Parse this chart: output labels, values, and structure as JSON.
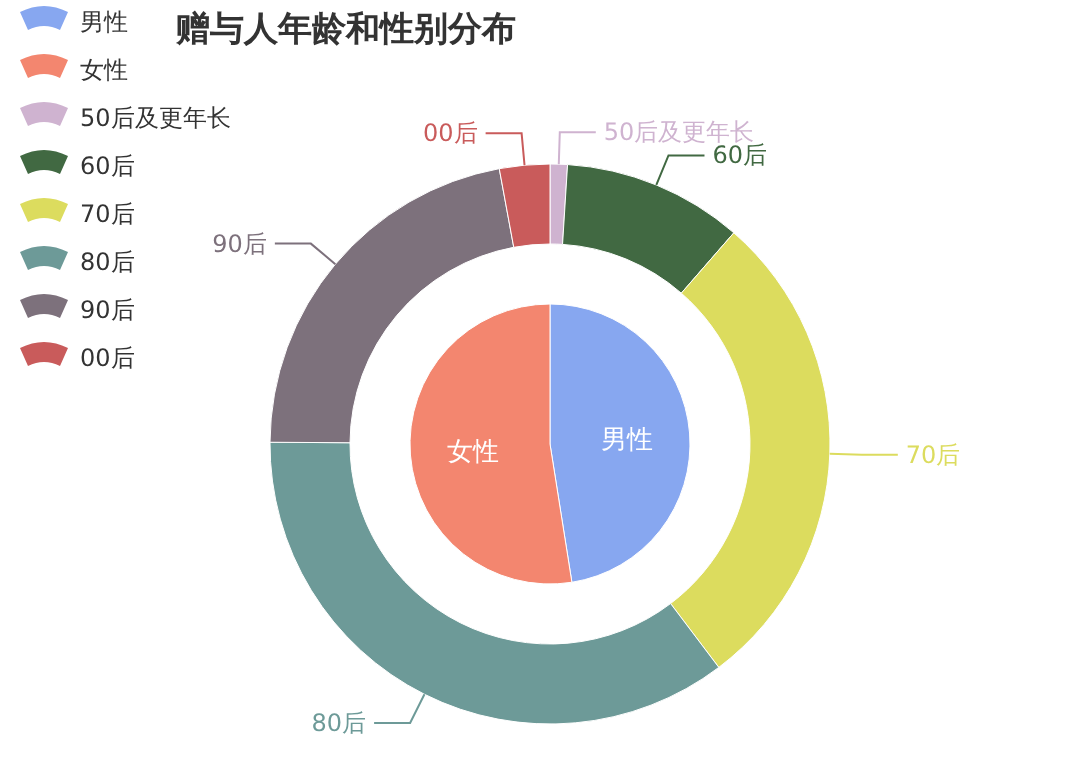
{
  "chart_data": [
    {
      "type": "pie",
      "title": "赠与人年龄和性别分布",
      "categories": [
        "男性",
        "女性"
      ],
      "values": [
        47.5,
        52.5
      ],
      "colors": [
        "#87a7f0",
        "#f3866f"
      ],
      "legend": "top left"
    },
    {
      "type": "donut",
      "categories": [
        "50后及更年长",
        "60后",
        "70后",
        "80后",
        "90后",
        "00后"
      ],
      "values": [
        1,
        10.4,
        28.3,
        35.4,
        22,
        2.9
      ],
      "colors": [
        "#cfb3d0",
        "#416942",
        "#dcdc5e",
        "#6d9a98",
        "#7d717c",
        "#c95b5b"
      ],
      "legend": "top left"
    }
  ]
}
